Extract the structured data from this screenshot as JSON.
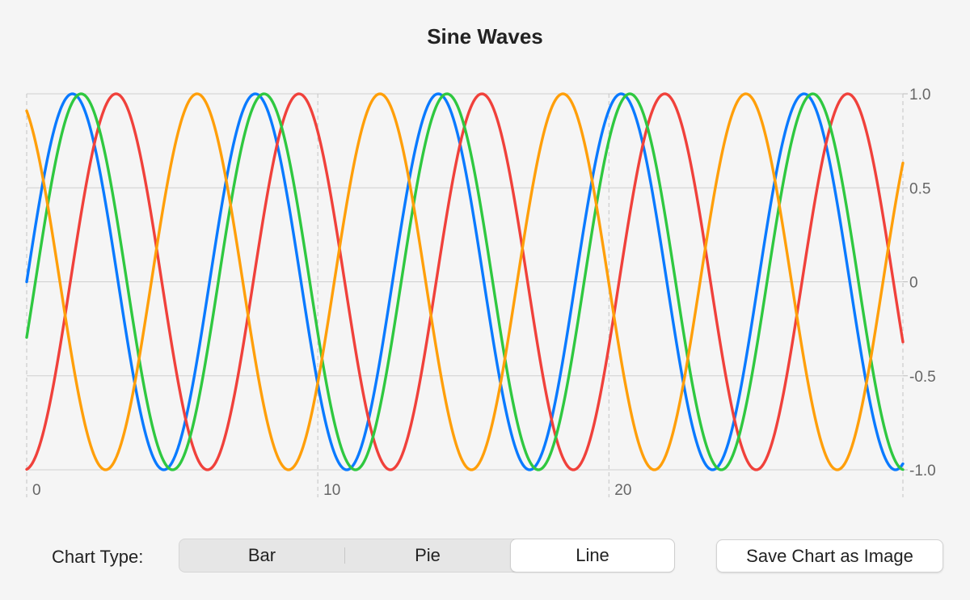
{
  "title": "Sine Waves",
  "controls": {
    "chart_type_label": "Chart Type:",
    "segments": [
      "Bar",
      "Pie",
      "Line"
    ],
    "selected_segment": "Line",
    "save_button_label": "Save Chart as Image"
  },
  "chart_data": {
    "type": "line",
    "title": "Sine Waves",
    "xlabel": "",
    "ylabel": "",
    "xlim": [
      0,
      30.1
    ],
    "ylim": [
      -1,
      1
    ],
    "x_ticks": [
      0,
      10,
      20
    ],
    "x_tick_labels": [
      "0",
      "10",
      "20"
    ],
    "y_ticks": [
      1.0,
      0.5,
      0,
      -0.5,
      -1.0
    ],
    "y_tick_labels": [
      "1.0",
      "0.5",
      "0",
      "-0.5",
      "-1.0"
    ],
    "y_axis_position": "right",
    "grid": true,
    "legend": "none",
    "series": [
      {
        "function": "sin(x)",
        "color": "#0a7aff"
      },
      {
        "function": "sin(x - 1.5)",
        "color": "#f0413b"
      },
      {
        "function": "sin(x - 0.3)",
        "color": "#2fc840"
      },
      {
        "function": "sin(x + 2.0)",
        "color": "#ff9f0a"
      }
    ],
    "x_step": 0.05
  }
}
